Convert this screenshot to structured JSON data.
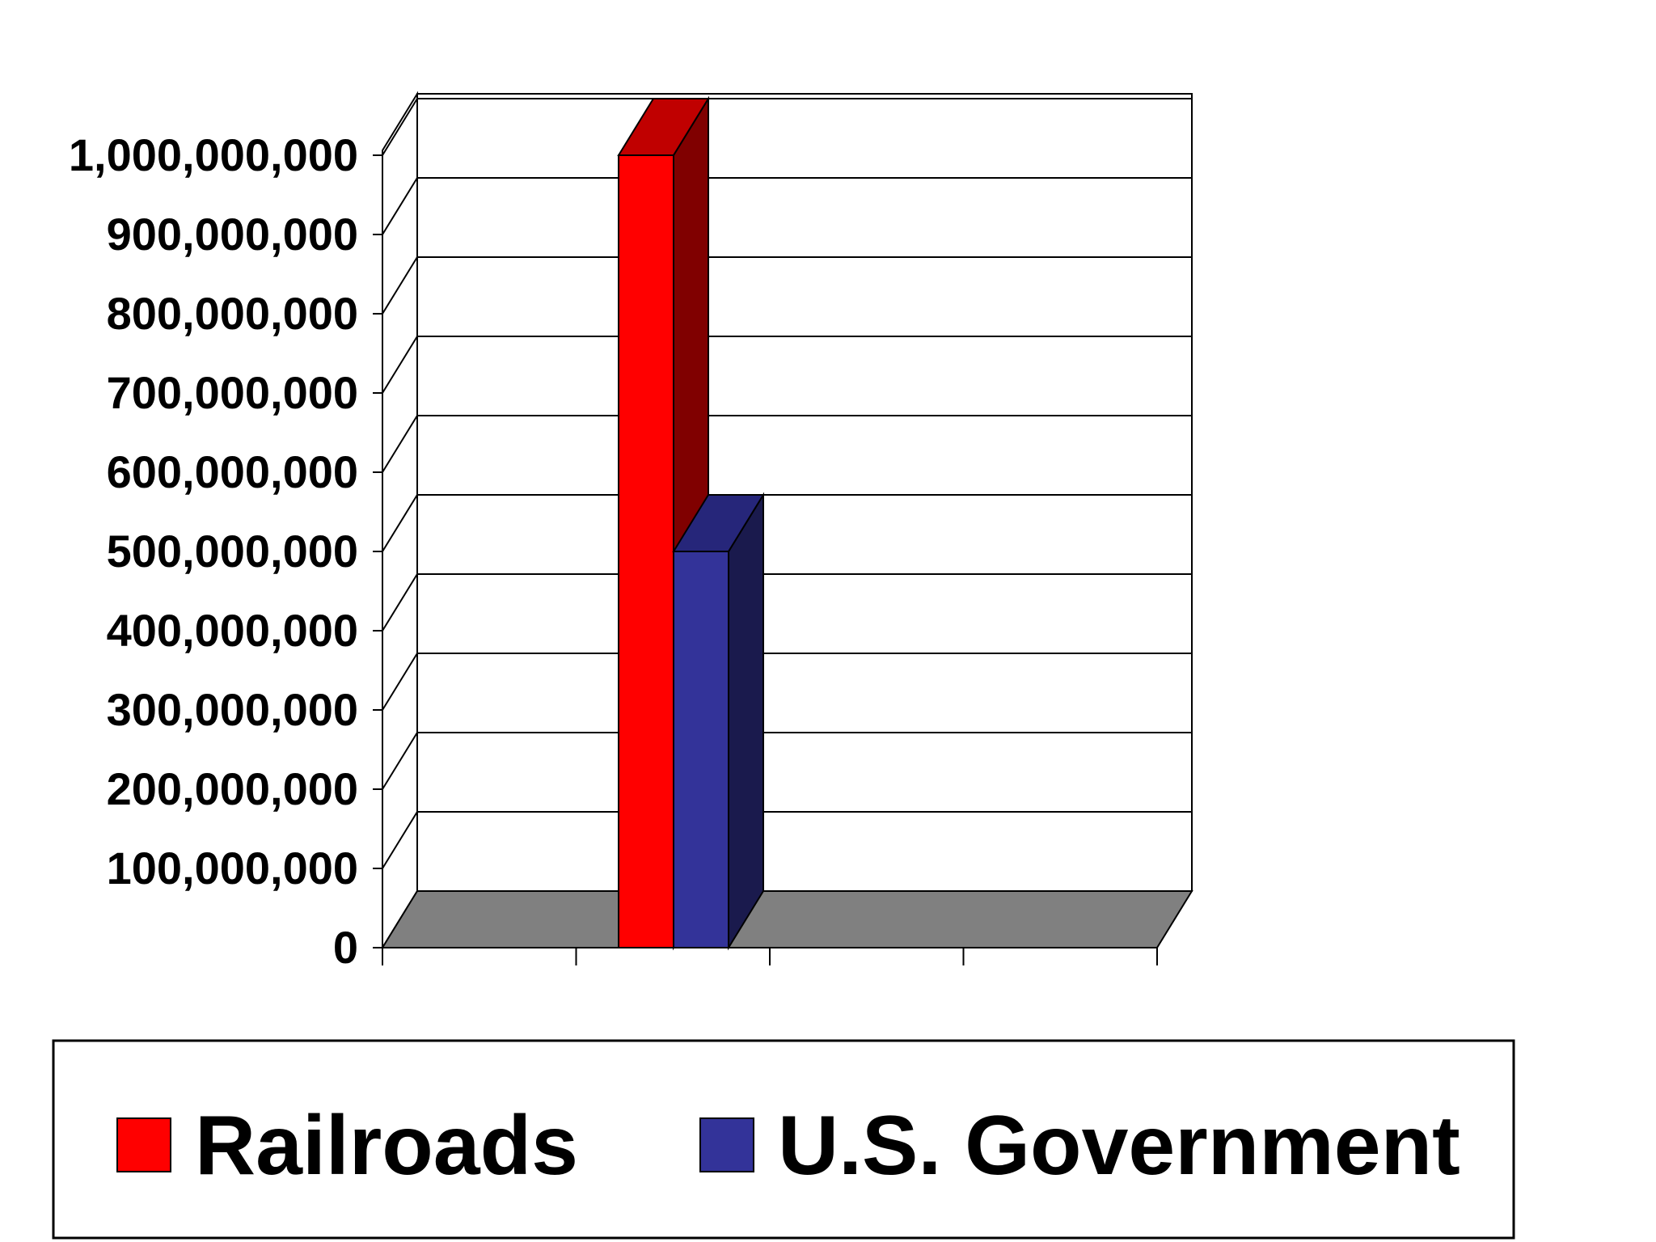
{
  "chart_data": {
    "type": "bar",
    "three_d": true,
    "categories": [
      ""
    ],
    "series": [
      {
        "name": "Railroads",
        "values": [
          1000000000
        ],
        "color": "#ff0000",
        "side_color": "#800000",
        "top_color": "#c00000"
      },
      {
        "name": "U.S. Government",
        "values": [
          500000000
        ],
        "color": "#333399",
        "side_color": "#1a1a4d",
        "top_color": "#26267a"
      }
    ],
    "y_ticks": [
      "0",
      "100,000,000",
      "200,000,000",
      "300,000,000",
      "400,000,000",
      "500,000,000",
      "600,000,000",
      "700,000,000",
      "800,000,000",
      "900,000,000",
      "1,000,000,000"
    ],
    "ylim": [
      0,
      1000000000
    ],
    "grid": true,
    "floor_color": "#808080",
    "legend": {
      "position": "bottom",
      "items": [
        "Railroads",
        "U.S. Government"
      ]
    },
    "title": "",
    "xlabel": "",
    "ylabel": ""
  }
}
